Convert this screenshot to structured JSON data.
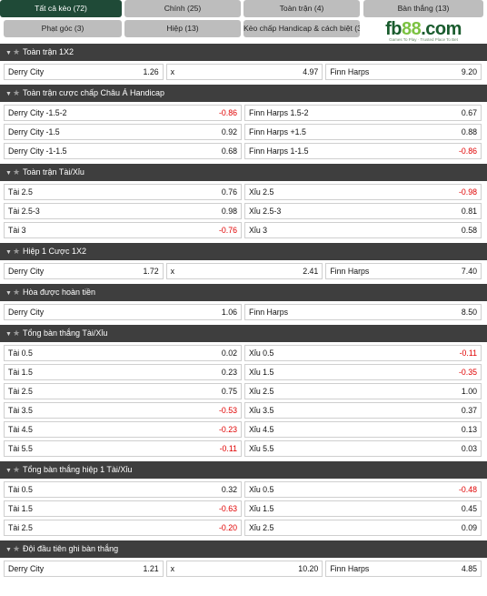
{
  "tabs": {
    "row1": [
      "Tất cả kèo (72)",
      "Chính (25)",
      "Toàn trận (4)",
      "Bàn thắng (13)"
    ],
    "row2": [
      "Phạt góc (3)",
      "Hiệp (13)",
      "Kèo chấp Handicap & cách biệt (3)"
    ]
  },
  "logo": {
    "brand_a": "fb",
    "brand_b": "88",
    "brand_c": ".com",
    "slogan": "Games To Play · Trusted Place To Bet"
  },
  "colors": {
    "header_bg": "#3e3e3e",
    "active_tab": "#1f4a37",
    "negative": "#e00000"
  },
  "sections": [
    {
      "title": "Toàn trận 1X2",
      "type": "three",
      "rows": [
        [
          {
            "label": "Derry City",
            "odd": "1.26"
          },
          {
            "label": "x",
            "odd": "4.97"
          },
          {
            "label": "Finn Harps",
            "odd": "9.20"
          }
        ]
      ]
    },
    {
      "title": "Toàn trận cược chấp Châu Á Handicap",
      "type": "two",
      "rows": [
        [
          {
            "label": "Derry City -1.5-2",
            "odd": "-0.86"
          },
          {
            "label": "Finn Harps 1.5-2",
            "odd": "0.67"
          }
        ],
        [
          {
            "label": "Derry City -1.5",
            "odd": "0.92"
          },
          {
            "label": "Finn Harps +1.5",
            "odd": "0.88"
          }
        ],
        [
          {
            "label": "Derry City -1-1.5",
            "odd": "0.68"
          },
          {
            "label": "Finn Harps 1-1.5",
            "odd": "-0.86"
          }
        ]
      ]
    },
    {
      "title": "Toàn trận Tài/Xỉu",
      "type": "two",
      "rows": [
        [
          {
            "label": "Tài 2.5",
            "odd": "0.76"
          },
          {
            "label": "Xỉu 2.5",
            "odd": "-0.98"
          }
        ],
        [
          {
            "label": "Tài 2.5-3",
            "odd": "0.98"
          },
          {
            "label": "Xỉu 2.5-3",
            "odd": "0.81"
          }
        ],
        [
          {
            "label": "Tài 3",
            "odd": "-0.76"
          },
          {
            "label": "Xỉu 3",
            "odd": "0.58"
          }
        ]
      ]
    },
    {
      "title": "Hiệp 1 Cược 1X2",
      "type": "three",
      "rows": [
        [
          {
            "label": "Derry City",
            "odd": "1.72"
          },
          {
            "label": "x",
            "odd": "2.41"
          },
          {
            "label": "Finn Harps",
            "odd": "7.40"
          }
        ]
      ]
    },
    {
      "title": "Hòa được hoàn tiền",
      "type": "two",
      "rows": [
        [
          {
            "label": "Derry City",
            "odd": "1.06"
          },
          {
            "label": "Finn Harps",
            "odd": "8.50"
          }
        ]
      ]
    },
    {
      "title": "Tổng bàn thắng Tài/Xỉu",
      "type": "two",
      "rows": [
        [
          {
            "label": "Tài 0.5",
            "odd": "0.02"
          },
          {
            "label": "Xỉu 0.5",
            "odd": "-0.11"
          }
        ],
        [
          {
            "label": "Tài 1.5",
            "odd": "0.23"
          },
          {
            "label": "Xỉu 1.5",
            "odd": "-0.35"
          }
        ],
        [
          {
            "label": "Tài 2.5",
            "odd": "0.75"
          },
          {
            "label": "Xỉu 2.5",
            "odd": "1.00"
          }
        ],
        [
          {
            "label": "Tài 3.5",
            "odd": "-0.53"
          },
          {
            "label": "Xỉu 3.5",
            "odd": "0.37"
          }
        ],
        [
          {
            "label": "Tài 4.5",
            "odd": "-0.23"
          },
          {
            "label": "Xỉu 4.5",
            "odd": "0.13"
          }
        ],
        [
          {
            "label": "Tài 5.5",
            "odd": "-0.11"
          },
          {
            "label": "Xỉu 5.5",
            "odd": "0.03"
          }
        ]
      ]
    },
    {
      "title": "Tổng bàn thắng hiệp 1 Tài/Xỉu",
      "type": "two",
      "rows": [
        [
          {
            "label": "Tài 0.5",
            "odd": "0.32"
          },
          {
            "label": "Xỉu 0.5",
            "odd": "-0.48"
          }
        ],
        [
          {
            "label": "Tài 1.5",
            "odd": "-0.63"
          },
          {
            "label": "Xỉu 1.5",
            "odd": "0.45"
          }
        ],
        [
          {
            "label": "Tài 2.5",
            "odd": "-0.20"
          },
          {
            "label": "Xỉu 2.5",
            "odd": "0.09"
          }
        ]
      ]
    },
    {
      "title": "Đội đầu tiên ghi bàn thắng",
      "type": "three",
      "rows": [
        [
          {
            "label": "Derry City",
            "odd": "1.21"
          },
          {
            "label": "x",
            "odd": "10.20"
          },
          {
            "label": "Finn Harps",
            "odd": "4.85"
          }
        ]
      ]
    }
  ]
}
